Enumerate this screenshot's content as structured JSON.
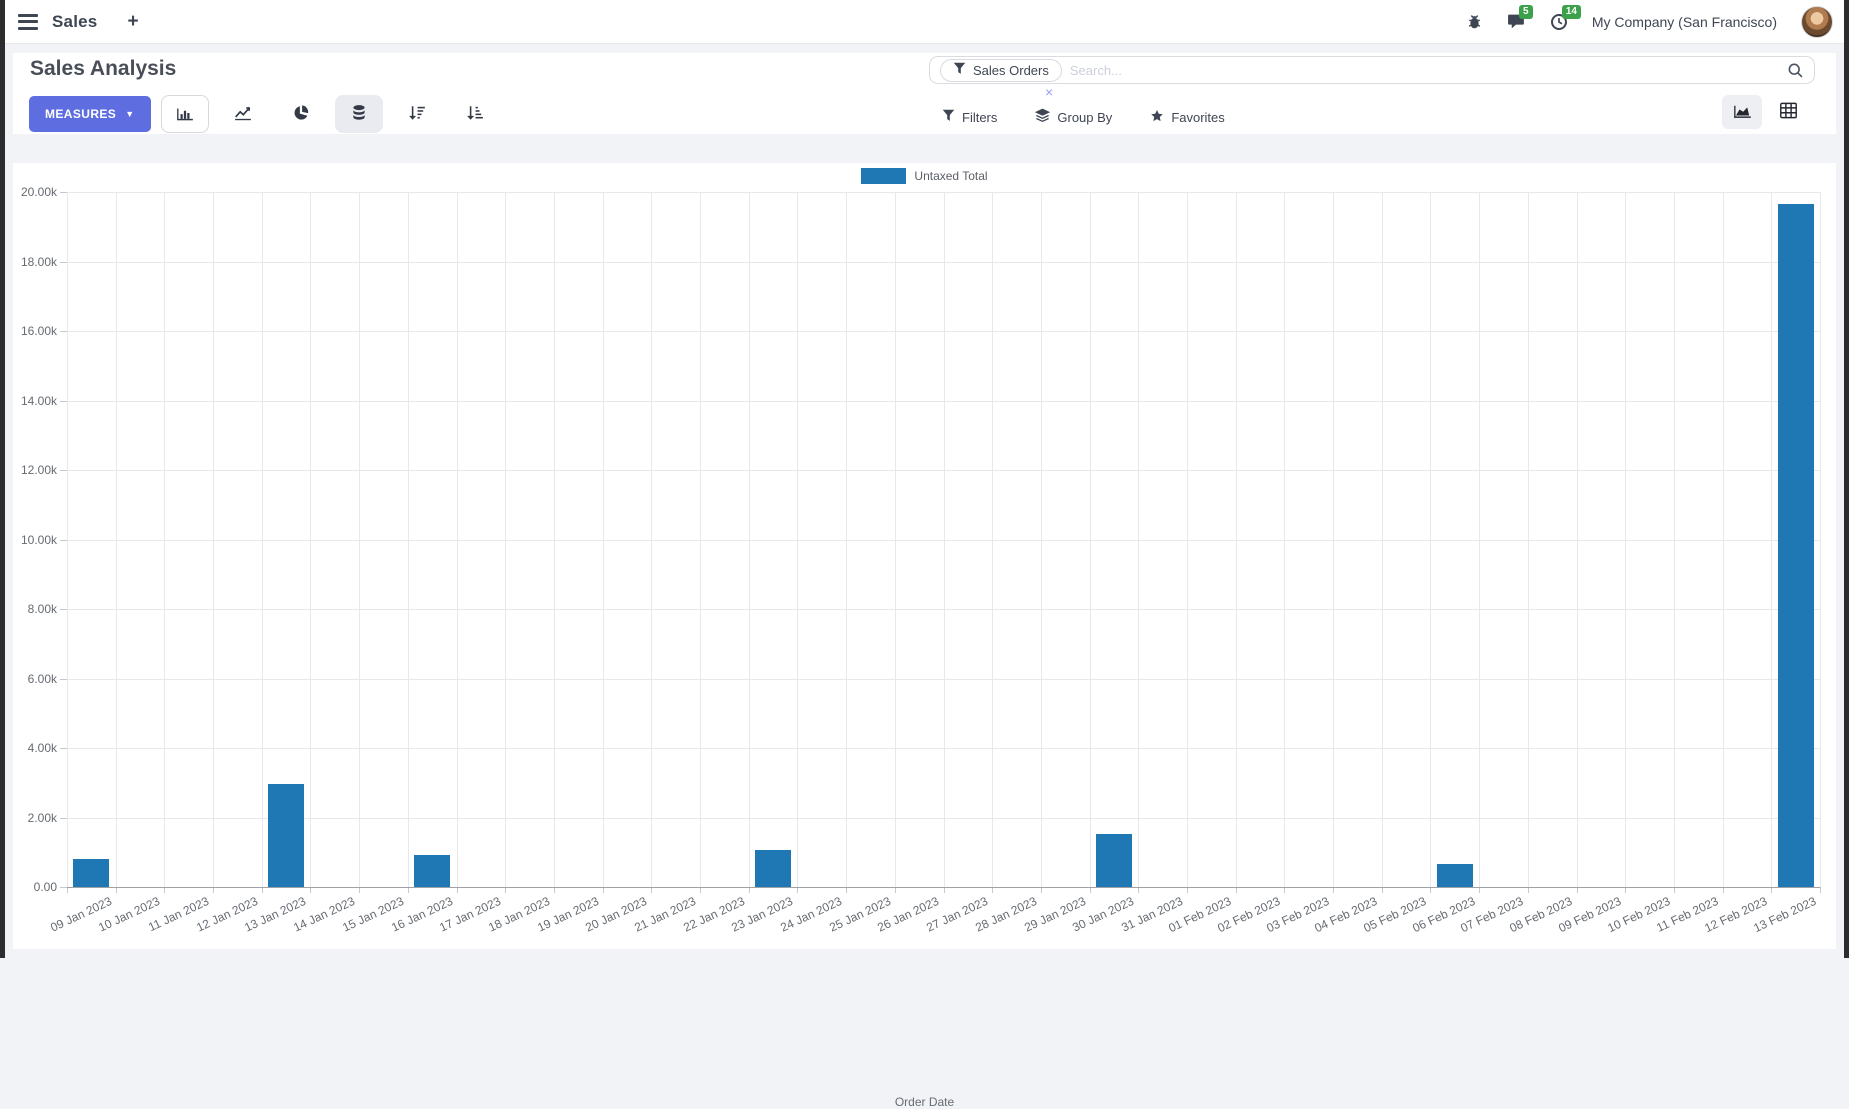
{
  "navbar": {
    "app_name": "Sales",
    "plus": "+",
    "messages_badge": "5",
    "activities_badge": "14",
    "company": "My Company (San Francisco)"
  },
  "control_panel": {
    "title": "Sales Analysis",
    "measures_label": "MEASURES",
    "search": {
      "facet": "Sales Orders",
      "facet_remove": "×",
      "placeholder": "Search..."
    },
    "filters_label": "Filters",
    "group_by_label": "Group By",
    "favorites_label": "Favorites"
  },
  "colors": {
    "bar": "#1f77b4",
    "primary_button": "#5e6de0",
    "badge_green": "#3ba24b"
  },
  "chart_data": {
    "type": "bar",
    "title": "",
    "xlabel": "Order Date",
    "ylabel": "",
    "legend_position": "top",
    "grid": true,
    "ylim": [
      0,
      20000
    ],
    "ytick_step": 2000,
    "ytick_labels": [
      "20.00k",
      "18.00k",
      "16.00k",
      "14.00k",
      "12.00k",
      "10.00k",
      "8.00k",
      "6.00k",
      "4.00k",
      "2.00k",
      "0.00"
    ],
    "categories": [
      "09 Jan 2023",
      "10 Jan 2023",
      "11 Jan 2023",
      "12 Jan 2023",
      "13 Jan 2023",
      "14 Jan 2023",
      "15 Jan 2023",
      "16 Jan 2023",
      "17 Jan 2023",
      "18 Jan 2023",
      "19 Jan 2023",
      "20 Jan 2023",
      "21 Jan 2023",
      "22 Jan 2023",
      "23 Jan 2023",
      "24 Jan 2023",
      "25 Jan 2023",
      "26 Jan 2023",
      "27 Jan 2023",
      "28 Jan 2023",
      "29 Jan 2023",
      "30 Jan 2023",
      "31 Jan 2023",
      "01 Feb 2023",
      "02 Feb 2023",
      "03 Feb 2023",
      "04 Feb 2023",
      "05 Feb 2023",
      "06 Feb 2023",
      "07 Feb 2023",
      "08 Feb 2023",
      "09 Feb 2023",
      "10 Feb 2023",
      "11 Feb 2023",
      "12 Feb 2023",
      "13 Feb 2023"
    ],
    "series": [
      {
        "name": "Untaxed Total",
        "color": "#1f77b4",
        "values": [
          800,
          0,
          0,
          0,
          2950,
          0,
          0,
          920,
          0,
          0,
          0,
          0,
          0,
          0,
          1070,
          0,
          0,
          0,
          0,
          0,
          0,
          1530,
          0,
          0,
          0,
          0,
          0,
          0,
          660,
          0,
          0,
          0,
          0,
          0,
          0,
          19650
        ]
      }
    ]
  }
}
